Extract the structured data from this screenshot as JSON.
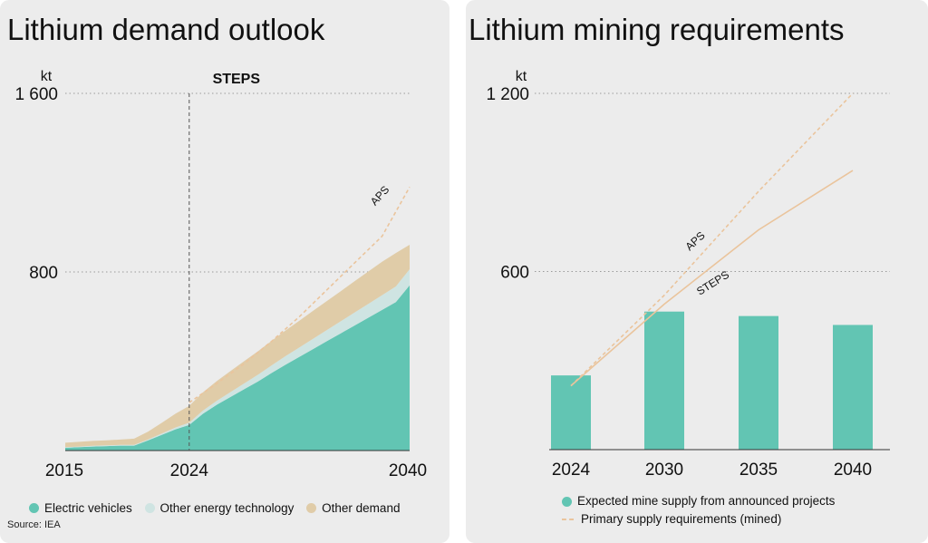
{
  "colors": {
    "ev": "#62c5b3",
    "other_energy": "#cfe4e2",
    "other_demand": "#e0cca8",
    "supply_line": "#eac49c",
    "bar": "#62c5b3",
    "grid": "#9a9a9a"
  },
  "left": {
    "title": "Lithium demand outlook",
    "unit": "kt",
    "scenario_label": "STEPS",
    "source": "Source: IEA",
    "legend": [
      {
        "label": "Electric vehicles",
        "color": "#62c5b3"
      },
      {
        "label": "Other energy technology",
        "color": "#cfe4e2"
      },
      {
        "label": "Other demand",
        "color": "#e0cca8"
      }
    ]
  },
  "right": {
    "title": "Lithium mining requirements",
    "unit": "kt",
    "legend": [
      {
        "label": "Expected mine supply from announced projects",
        "kind": "dot"
      },
      {
        "label": "Primary supply requirements (mined)",
        "kind": "line"
      }
    ]
  },
  "chart_data": [
    {
      "type": "area",
      "title": "Lithium demand outlook",
      "ylabel": "kt",
      "ylim": [
        0,
        1600
      ],
      "yticks": [
        800,
        1600
      ],
      "xlim": [
        2015,
        2040
      ],
      "xticks": [
        2015,
        2024,
        2040
      ],
      "x": [
        2015,
        2016,
        2017,
        2018,
        2019,
        2020,
        2021,
        2022,
        2023,
        2024,
        2025,
        2026,
        2027,
        2028,
        2029,
        2030,
        2031,
        2032,
        2033,
        2034,
        2035,
        2036,
        2037,
        2038,
        2039,
        2040
      ],
      "series": [
        {
          "name": "Electric vehicles",
          "values": [
            12,
            15,
            18,
            20,
            22,
            22,
            45,
            70,
            95,
            115,
            165,
            205,
            240,
            275,
            310,
            348,
            385,
            420,
            455,
            490,
            525,
            560,
            595,
            630,
            665,
            740
          ]
        },
        {
          "name": "Other energy technology",
          "values": [
            3,
            3,
            3,
            3,
            3,
            3,
            4,
            6,
            8,
            10,
            14,
            18,
            22,
            26,
            30,
            34,
            38,
            42,
            46,
            50,
            54,
            58,
            62,
            66,
            70,
            72
          ]
        },
        {
          "name": "Other demand",
          "values": [
            20,
            21,
            22,
            23,
            24,
            28,
            35,
            48,
            62,
            75,
            82,
            88,
            94,
            100,
            105,
            110,
            115,
            120,
            125,
            130,
            135,
            140,
            145,
            150,
            150,
            110
          ]
        }
      ],
      "scenario_line": {
        "name": "APS",
        "x": [
          2024,
          2026,
          2028,
          2030,
          2032,
          2034,
          2036,
          2038,
          2040
        ],
        "values": [
          215,
          300,
          390,
          490,
          600,
          720,
          840,
          960,
          1180
        ]
      },
      "annotations": [
        "STEPS",
        "APS"
      ],
      "reference_line_x": 2024
    },
    {
      "type": "bar",
      "title": "Lithium mining requirements",
      "ylabel": "kt",
      "ylim": [
        0,
        1200
      ],
      "yticks": [
        600,
        1200
      ],
      "categories": [
        "2024",
        "2030",
        "2035",
        "2040"
      ],
      "series": [
        {
          "name": "Expected mine supply from announced projects",
          "values": [
            250,
            465,
            450,
            420
          ]
        }
      ],
      "lines": [
        {
          "name": "STEPS",
          "style": "solid",
          "values": [
            215,
            490,
            740,
            940
          ]
        },
        {
          "name": "APS",
          "style": "dashed",
          "values": [
            215,
            520,
            870,
            1200
          ]
        }
      ]
    }
  ]
}
